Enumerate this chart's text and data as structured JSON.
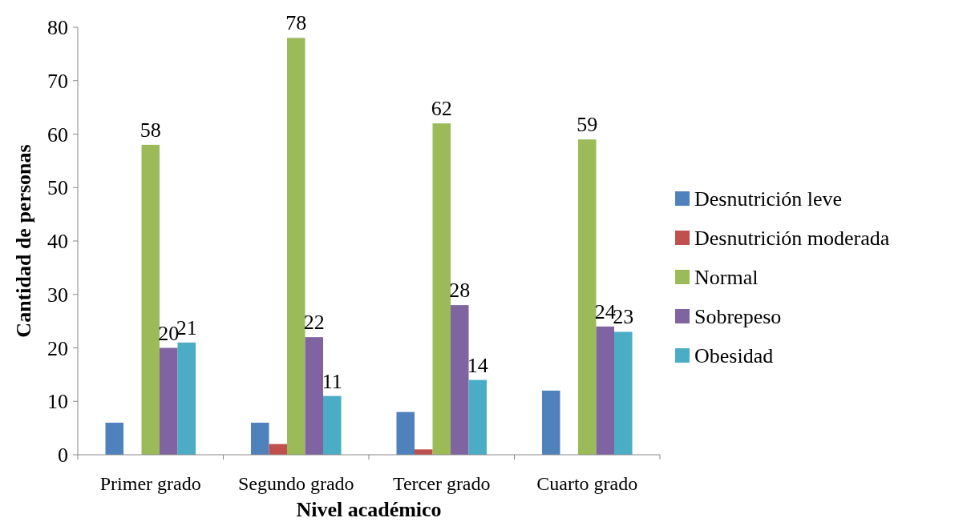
{
  "chart_data": {
    "type": "bar",
    "xlabel": "Nivel académico",
    "ylabel": "Cantidad de personas",
    "categories": [
      "Primer grado",
      "Segundo grado",
      "Tercer grado",
      "Cuarto grado"
    ],
    "series": [
      {
        "name": "Desnutrición leve",
        "color": "#4f81bd",
        "values": [
          6,
          6,
          8,
          12
        ]
      },
      {
        "name": "Desnutrición moderada",
        "color": "#c0504d",
        "values": [
          null,
          2,
          1,
          null
        ]
      },
      {
        "name": "Normal",
        "color": "#9bbb59",
        "values": [
          58,
          78,
          62,
          59
        ],
        "value_labels": [
          "58",
          "78",
          "62",
          "59"
        ]
      },
      {
        "name": "Sobrepeso",
        "color": "#8064a2",
        "values": [
          20,
          22,
          28,
          24
        ],
        "value_labels": [
          "20",
          "22",
          "28",
          "24"
        ]
      },
      {
        "name": "Obesidad",
        "color": "#4bacc6",
        "values": [
          21,
          11,
          14,
          23
        ],
        "value_labels": [
          "21",
          "11",
          "14",
          "23"
        ]
      }
    ],
    "ylim": [
      0,
      80
    ],
    "yticks": [
      0,
      10,
      20,
      30,
      40,
      50,
      60,
      70,
      80
    ],
    "grid": false,
    "legend": "right"
  }
}
